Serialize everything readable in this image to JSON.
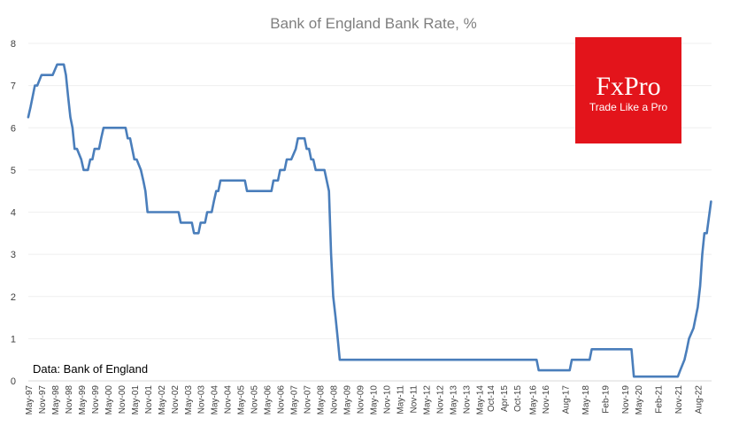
{
  "chart_data": {
    "type": "line",
    "title": "Bank of England Bank Rate, %",
    "xlabel": "",
    "ylabel": "",
    "ylim": [
      0,
      8
    ],
    "yticks": [
      0,
      1,
      2,
      3,
      4,
      5,
      6,
      7,
      8
    ],
    "grid": true,
    "annotations": [
      "Data: Bank of England"
    ],
    "x_tick_labels": [
      "May-97",
      "Nov-97",
      "May-98",
      "Nov-98",
      "May-99",
      "Nov-99",
      "May-00",
      "Nov-00",
      "May-01",
      "Nov-01",
      "May-02",
      "Nov-02",
      "May-03",
      "Nov-03",
      "May-04",
      "Nov-04",
      "May-05",
      "Nov-05",
      "May-06",
      "Nov-06",
      "May-07",
      "Nov-07",
      "May-08",
      "Nov-08",
      "May-09",
      "Nov-09",
      "May-10",
      "Nov-10",
      "May-11",
      "Nov-11",
      "May-12",
      "Nov-12",
      "May-13",
      "Nov-13",
      "May-14",
      "Oct-14",
      "Apr-15",
      "Oct-15",
      "May-16",
      "Nov-16",
      "Aug-17",
      "May-18",
      "Feb-19",
      "Nov-19",
      "May-20",
      "Feb-21",
      "Nov-21",
      "Aug-22"
    ],
    "x_tick_positions": [
      1997.333,
      1997.833,
      1998.333,
      1998.833,
      1999.333,
      1999.833,
      2000.333,
      2000.833,
      2001.333,
      2001.833,
      2002.333,
      2002.833,
      2003.333,
      2003.833,
      2004.333,
      2004.833,
      2005.333,
      2005.833,
      2006.333,
      2006.833,
      2007.333,
      2007.833,
      2008.333,
      2008.833,
      2009.333,
      2009.833,
      2010.333,
      2010.833,
      2011.333,
      2011.833,
      2012.333,
      2012.833,
      2013.333,
      2013.833,
      2014.333,
      2014.75,
      2015.25,
      2015.75,
      2016.333,
      2016.833,
      2017.583,
      2018.333,
      2019.083,
      2019.833,
      2020.333,
      2021.083,
      2021.833,
      2022.583
    ],
    "xlim": [
      1997.333,
      2023.1
    ],
    "series": [
      {
        "name": "Bank Rate",
        "color": "#4a7ebb",
        "x": [
          1997.33,
          1997.42,
          1997.5,
          1997.58,
          1997.67,
          1997.83,
          1998.0,
          1998.25,
          1998.42,
          1998.67,
          1998.75,
          1998.83,
          1998.92,
          1999.0,
          1999.08,
          1999.17,
          1999.33,
          1999.42,
          1999.5,
          1999.58,
          1999.67,
          1999.75,
          1999.83,
          2000.0,
          2000.08,
          2000.17,
          2000.33,
          2000.5,
          2000.75,
          2001.0,
          2001.08,
          2001.17,
          2001.25,
          2001.33,
          2001.42,
          2001.58,
          2001.67,
          2001.75,
          2001.83,
          2002.0,
          2003.0,
          2003.08,
          2003.5,
          2003.58,
          2003.75,
          2003.83,
          2004.0,
          2004.08,
          2004.25,
          2004.33,
          2004.42,
          2004.5,
          2004.58,
          2005.0,
          2005.5,
          2005.58,
          2006.0,
          2006.5,
          2006.58,
          2006.75,
          2006.83,
          2007.0,
          2007.08,
          2007.25,
          2007.42,
          2007.5,
          2007.75,
          2007.83,
          2007.92,
          2008.0,
          2008.08,
          2008.17,
          2008.25,
          2008.33,
          2008.5,
          2008.67,
          2008.75,
          2008.83,
          2008.92,
          2009.0,
          2009.08,
          2009.17,
          2016.5,
          2016.58,
          2017.75,
          2017.83,
          2018.5,
          2018.58,
          2020.08,
          2020.17,
          2020.25,
          2021.83,
          2021.92,
          2022.08,
          2022.17,
          2022.25,
          2022.42,
          2022.58,
          2022.67,
          2022.75,
          2022.83,
          2022.92,
          2023.08
        ],
        "values": [
          6.25,
          6.5,
          6.75,
          7.0,
          7.0,
          7.25,
          7.25,
          7.25,
          7.5,
          7.5,
          7.25,
          6.75,
          6.25,
          6.0,
          5.5,
          5.5,
          5.25,
          5.0,
          5.0,
          5.0,
          5.25,
          5.25,
          5.5,
          5.5,
          5.75,
          6.0,
          6.0,
          6.0,
          6.0,
          6.0,
          5.75,
          5.75,
          5.5,
          5.25,
          5.25,
          5.0,
          4.75,
          4.5,
          4.0,
          4.0,
          4.0,
          3.75,
          3.75,
          3.5,
          3.5,
          3.75,
          3.75,
          4.0,
          4.0,
          4.25,
          4.5,
          4.5,
          4.75,
          4.75,
          4.75,
          4.5,
          4.5,
          4.5,
          4.75,
          4.75,
          5.0,
          5.0,
          5.25,
          5.25,
          5.5,
          5.75,
          5.75,
          5.5,
          5.5,
          5.25,
          5.25,
          5.0,
          5.0,
          5.0,
          5.0,
          4.5,
          3.0,
          2.0,
          1.5,
          1.0,
          0.5,
          0.5,
          0.5,
          0.25,
          0.25,
          0.5,
          0.5,
          0.75,
          0.75,
          0.1,
          0.1,
          0.1,
          0.25,
          0.5,
          0.75,
          1.0,
          1.25,
          1.75,
          2.25,
          3.0,
          3.5,
          3.5,
          4.25
        ]
      }
    ]
  },
  "source_note": "Data: Bank of England",
  "brand": {
    "name": "FxPro",
    "tagline": "Trade Like a Pro",
    "color": "#e3141b"
  }
}
